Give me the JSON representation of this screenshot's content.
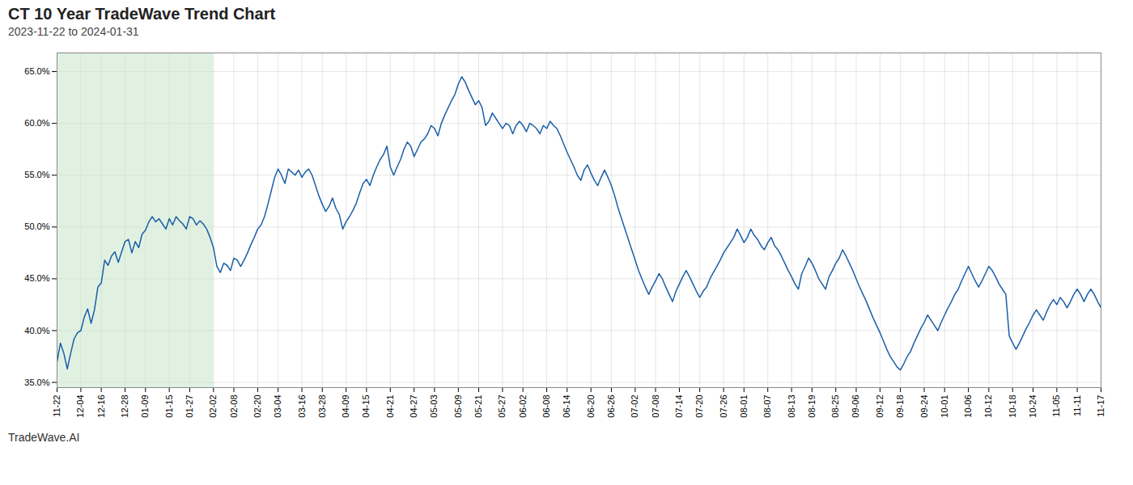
{
  "chart_data": {
    "type": "line",
    "title": "CT 10 Year TradeWave Trend Chart",
    "subtitle": "2023-11-22 to 2024-01-31",
    "annotations": [
      "TradeWave.AI"
    ],
    "categories": [
      "11-22",
      null,
      null,
      null,
      null,
      null,
      null,
      "12-04",
      null,
      null,
      null,
      null,
      null,
      "12-16",
      null,
      null,
      null,
      null,
      null,
      null,
      "12-28",
      null,
      null,
      null,
      null,
      null,
      "01-09",
      null,
      null,
      null,
      null,
      null,
      null,
      "01-15",
      null,
      null,
      null,
      null,
      null,
      "01-27",
      null,
      null,
      null,
      null,
      null,
      null,
      "02-02",
      null,
      null,
      null,
      null,
      null,
      "02-08",
      null,
      null,
      null,
      null,
      null,
      null,
      "02-20",
      null,
      null,
      null,
      null,
      null,
      "03-04",
      null,
      null,
      null,
      null,
      null,
      null,
      "03-16",
      null,
      null,
      null,
      null,
      null,
      "03-28",
      null,
      null,
      null,
      null,
      null,
      null,
      "04-09",
      null,
      null,
      null,
      null,
      null,
      "04-15",
      null,
      null,
      null,
      null,
      null,
      null,
      "04-21",
      null,
      null,
      null,
      null,
      null,
      null,
      "04-27",
      null,
      null,
      null,
      null,
      null,
      "05-03",
      null,
      null,
      null,
      null,
      null,
      null,
      "05-09",
      null,
      null,
      null,
      null,
      null,
      "05-21",
      null,
      null,
      null,
      null,
      null,
      null,
      "05-27",
      null,
      null,
      null,
      null,
      null,
      "06-02",
      null,
      null,
      null,
      null,
      null,
      null,
      "06-08",
      null,
      null,
      null,
      null,
      null,
      "06-14",
      null,
      null,
      null,
      null,
      null,
      null,
      "06-20",
      null,
      null,
      null,
      null,
      null,
      "06-26",
      null,
      null,
      null,
      null,
      null,
      null,
      "07-02",
      null,
      null,
      null,
      null,
      null,
      "07-08",
      null,
      null,
      null,
      null,
      null,
      null,
      "07-14",
      null,
      null,
      null,
      null,
      null,
      "07-20",
      null,
      null,
      null,
      null,
      null,
      null,
      "07-26",
      null,
      null,
      null,
      null,
      null,
      "08-01",
      null,
      null,
      null,
      null,
      null,
      null,
      "08-07",
      null,
      null,
      null,
      null,
      null,
      null,
      "08-13",
      null,
      null,
      null,
      null,
      null,
      "08-19",
      null,
      null,
      null,
      null,
      null,
      null,
      "08-25",
      null,
      null,
      null,
      null,
      null,
      "09-06",
      null,
      null,
      null,
      null,
      null,
      null,
      "09-12",
      null,
      null,
      null,
      null,
      null,
      "09-18",
      null,
      null,
      null,
      null,
      null,
      null,
      "09-24",
      null,
      null,
      null,
      null,
      null,
      "10-01",
      null,
      null,
      null,
      null,
      null,
      null,
      "10-06",
      null,
      null,
      null,
      null,
      null,
      "10-12",
      null,
      null,
      null,
      null,
      null,
      null,
      "10-18",
      null,
      null,
      null,
      null,
      null,
      "10-24",
      null,
      null,
      null,
      null,
      null,
      null,
      "11-05",
      null,
      null,
      null,
      null,
      null,
      "11-11",
      null,
      null,
      null,
      null,
      null,
      null,
      "11-17"
    ],
    "values": [
      0.37,
      0.388,
      0.378,
      0.363,
      0.378,
      0.392,
      0.398,
      0.4,
      0.413,
      0.421,
      0.407,
      0.42,
      0.442,
      0.446,
      0.468,
      0.463,
      0.472,
      0.476,
      0.466,
      0.476,
      0.486,
      0.488,
      0.475,
      0.486,
      0.48,
      0.493,
      0.497,
      0.505,
      0.51,
      0.505,
      0.508,
      0.503,
      0.498,
      0.508,
      0.502,
      0.51,
      0.506,
      0.503,
      0.498,
      0.51,
      0.508,
      0.502,
      0.506,
      0.503,
      0.498,
      0.49,
      0.48,
      0.462,
      0.456,
      0.465,
      0.463,
      0.458,
      0.47,
      0.468,
      0.462,
      0.468,
      0.475,
      0.483,
      0.49,
      0.498,
      0.502,
      0.51,
      0.522,
      0.535,
      0.548,
      0.556,
      0.55,
      0.542,
      0.556,
      0.553,
      0.55,
      0.555,
      0.548,
      0.553,
      0.556,
      0.55,
      0.54,
      0.53,
      0.522,
      0.515,
      0.52,
      0.528,
      0.518,
      0.512,
      0.498,
      0.505,
      0.51,
      0.516,
      0.523,
      0.533,
      0.542,
      0.546,
      0.54,
      0.55,
      0.558,
      0.565,
      0.57,
      0.578,
      0.558,
      0.55,
      0.558,
      0.565,
      0.575,
      0.582,
      0.578,
      0.568,
      0.575,
      0.582,
      0.585,
      0.59,
      0.598,
      0.595,
      0.588,
      0.6,
      0.608,
      0.615,
      0.622,
      0.628,
      0.638,
      0.645,
      0.64,
      0.632,
      0.625,
      0.618,
      0.622,
      0.615,
      0.598,
      0.602,
      0.61,
      0.605,
      0.6,
      0.595,
      0.6,
      0.598,
      0.59,
      0.598,
      0.602,
      0.598,
      0.592,
      0.6,
      0.598,
      0.595,
      0.59,
      0.598,
      0.595,
      0.602,
      0.598,
      0.595,
      0.588,
      0.58,
      0.572,
      0.565,
      0.558,
      0.55,
      0.545,
      0.555,
      0.56,
      0.552,
      0.545,
      0.54,
      0.548,
      0.555,
      0.548,
      0.54,
      0.53,
      0.518,
      0.508,
      0.498,
      0.488,
      0.478,
      0.468,
      0.458,
      0.45,
      0.442,
      0.435,
      0.442,
      0.448,
      0.455,
      0.45,
      0.442,
      0.435,
      0.428,
      0.438,
      0.445,
      0.452,
      0.458,
      0.452,
      0.445,
      0.438,
      0.432,
      0.438,
      0.442,
      0.45,
      0.456,
      0.462,
      0.468,
      0.475,
      0.48,
      0.485,
      0.49,
      0.498,
      0.492,
      0.485,
      0.49,
      0.498,
      0.492,
      0.488,
      0.482,
      0.478,
      0.485,
      0.49,
      0.482,
      0.478,
      0.472,
      0.465,
      0.458,
      0.452,
      0.445,
      0.44,
      0.455,
      0.462,
      0.47,
      0.465,
      0.458,
      0.45,
      0.445,
      0.44,
      0.452,
      0.458,
      0.465,
      0.47,
      0.478,
      0.472,
      0.465,
      0.458,
      0.45,
      0.442,
      0.435,
      0.428,
      0.42,
      0.412,
      0.405,
      0.398,
      0.39,
      0.382,
      0.375,
      0.37,
      0.365,
      0.362,
      0.368,
      0.375,
      0.38,
      0.388,
      0.395,
      0.402,
      0.408,
      0.415,
      0.41,
      0.405,
      0.4,
      0.408,
      0.415,
      0.422,
      0.428,
      0.435,
      0.44,
      0.448,
      0.455,
      0.462,
      0.455,
      0.448,
      0.442,
      0.448,
      0.455,
      0.462,
      0.458,
      0.452,
      0.445,
      0.44,
      0.435,
      0.395,
      0.388,
      0.382,
      0.388,
      0.395,
      0.402,
      0.408,
      0.415,
      0.42,
      0.415,
      0.41,
      0.418,
      0.425,
      0.43,
      0.425,
      0.432,
      0.428,
      0.422,
      0.428,
      0.435,
      0.44,
      0.435,
      0.428,
      0.435,
      0.44,
      0.435,
      0.428,
      0.422
    ],
    "color": "#1a5fa8",
    "highlight": {
      "start": "11-22",
      "end": "02-02",
      "color": "#c8e6c9"
    },
    "ylim": [
      0.345,
      0.668
    ],
    "yticks": [
      {
        "value": 0.35,
        "label": "35.0%"
      },
      {
        "value": 0.4,
        "label": "40.0%"
      },
      {
        "value": 0.45,
        "label": "45.0%"
      },
      {
        "value": 0.5,
        "label": "50.0%"
      },
      {
        "value": 0.55,
        "label": "55.0%"
      },
      {
        "value": 0.6,
        "label": "60.0%"
      },
      {
        "value": 0.65,
        "label": "65.0%"
      }
    ],
    "grid": true
  }
}
